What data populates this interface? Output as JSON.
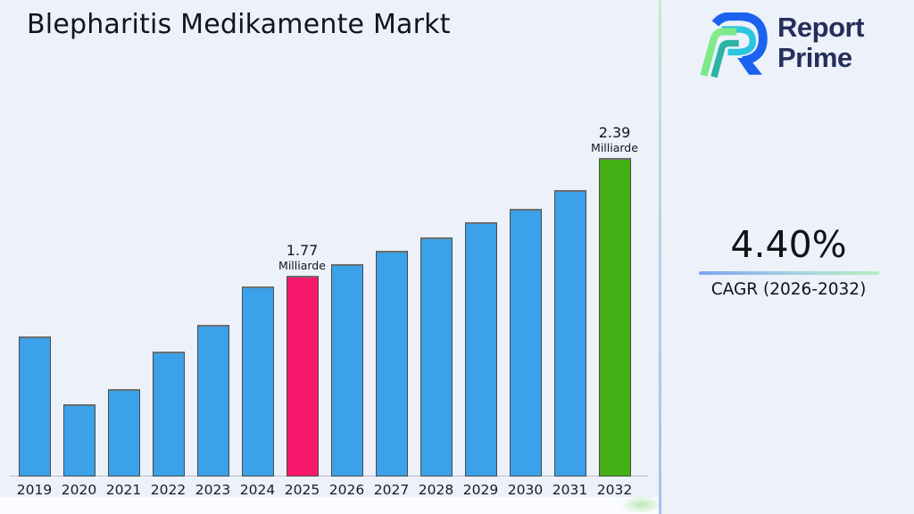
{
  "title": "Blepharitis Medikamente Markt",
  "logo": {
    "line1": "Report",
    "line2": "Prime"
  },
  "cagr": {
    "value": "4.40%",
    "label": "CAGR (2026-2032)"
  },
  "chart_data": {
    "type": "bar",
    "title": "Blepharitis Medikamente Markt",
    "xlabel": "",
    "ylabel": "",
    "unit": "Milliarde",
    "grid": false,
    "legend": "none",
    "categories": [
      "2019",
      "2020",
      "2021",
      "2022",
      "2023",
      "2024",
      "2025",
      "2026",
      "2027",
      "2028",
      "2029",
      "2030",
      "2031",
      "2032"
    ],
    "values": [
      1.45,
      1.09,
      1.17,
      1.37,
      1.51,
      1.71,
      1.77,
      1.83,
      1.9,
      1.97,
      2.05,
      2.12,
      2.22,
      2.39
    ],
    "ylim": [
      0.71,
      2.52
    ],
    "bar_color": "#3BA1E8",
    "bar_border_color": "#4A4A4A",
    "highlights": [
      {
        "year": "2025",
        "label": "1.77",
        "unit": "Milliarde",
        "color": "#F8186B"
      },
      {
        "year": "2032",
        "label": "2.39",
        "unit": "Milliarde",
        "color": "#44B015"
      }
    ]
  },
  "colors": {
    "background": "#ECF1FA",
    "bar_blue": "#3BA1E8",
    "highlight_pink": "#F8186B",
    "highlight_green": "#44B015",
    "logo_navy": "#262E5C",
    "divider_top_green": "#C3ECCF",
    "divider_bottom_blue": "#9EC2F1",
    "text_dark": "#12151B"
  },
  "icons": {
    "logo_mark": "report-prime-monogram"
  }
}
